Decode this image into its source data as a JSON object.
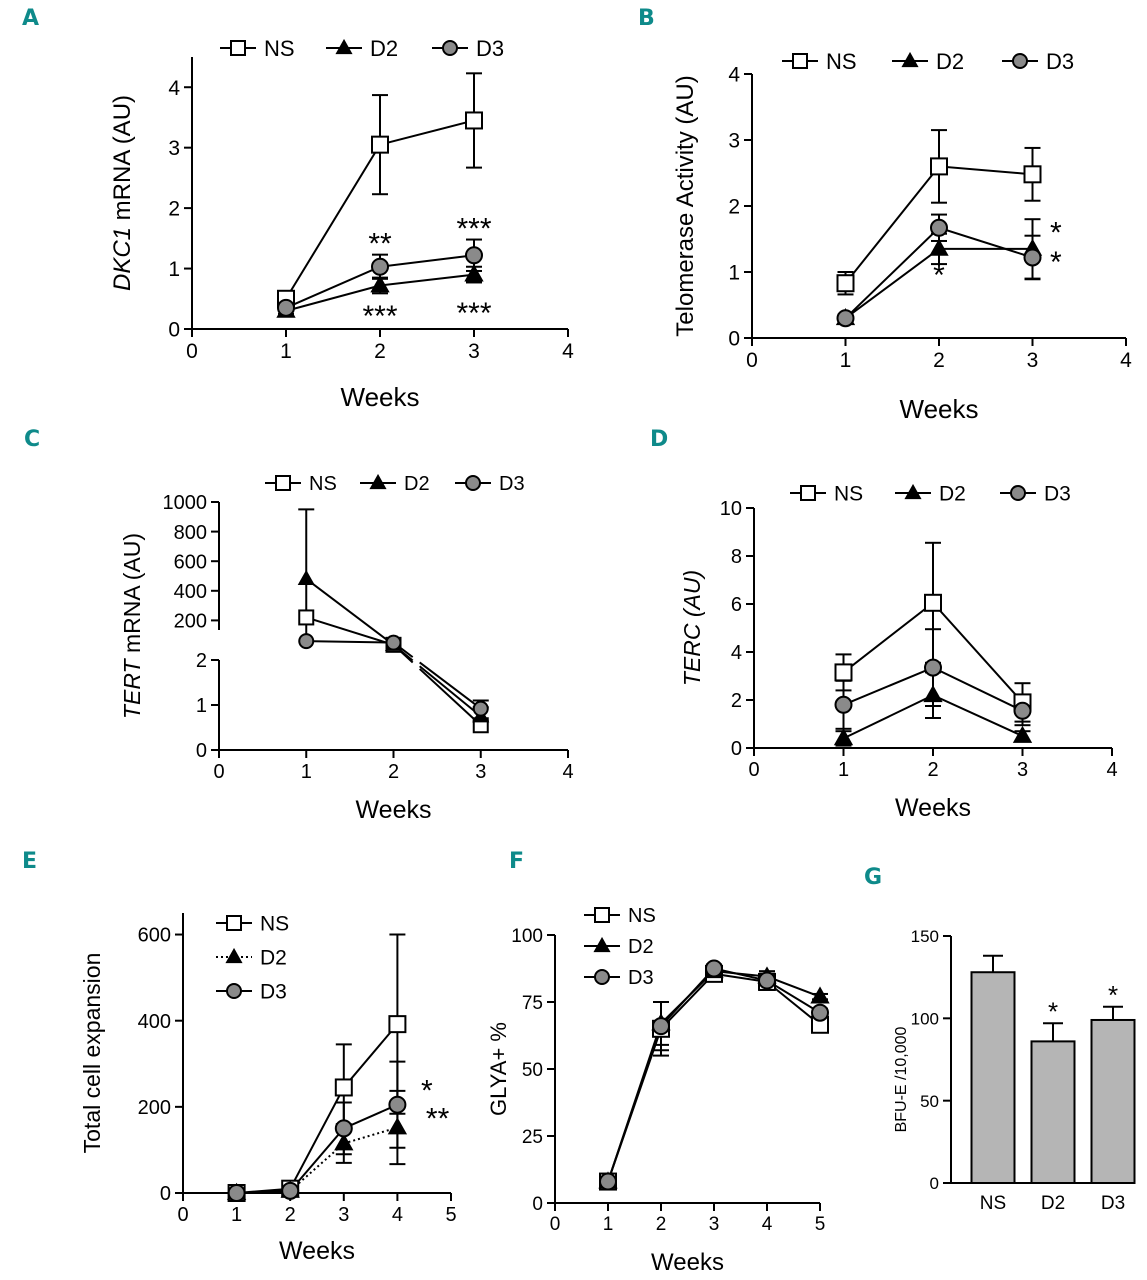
{
  "chart_data": [
    {
      "id": "A",
      "panel_label": "A",
      "type": "line",
      "ylabel_italic": "DKC1",
      "ylabel_rest": " mRNA (AU)",
      "xlabel": "Weeks",
      "xlim": [
        0,
        4
      ],
      "ylim": [
        0,
        4.5
      ],
      "xticks": [
        0,
        1,
        2,
        3,
        4
      ],
      "yticks": [
        0,
        1,
        2,
        3,
        4
      ],
      "x": [
        1,
        2,
        3
      ],
      "series": [
        {
          "name": "NS",
          "values": [
            0.5,
            3.05,
            3.45
          ],
          "err": [
            0.05,
            0.82,
            0.78
          ]
        },
        {
          "name": "D2",
          "values": [
            0.3,
            0.72,
            0.9
          ],
          "err": [
            0.05,
            0.13,
            0.13
          ]
        },
        {
          "name": "D3",
          "values": [
            0.35,
            1.03,
            1.22
          ],
          "err": [
            0.05,
            0.2,
            0.26
          ]
        }
      ],
      "legend": [
        "NS",
        "D2",
        "D3"
      ],
      "annotations": [
        {
          "text": "**",
          "x": 2,
          "y": 1.25
        },
        {
          "text": "***",
          "x": 2,
          "y": 0.05
        },
        {
          "text": "***",
          "x": 3,
          "y": 1.5
        },
        {
          "text": "***",
          "x": 3,
          "y": 0.1
        }
      ]
    },
    {
      "id": "B",
      "panel_label": "B",
      "type": "line",
      "ylabel": "Telomerase Activity (AU)",
      "xlabel": "Weeks",
      "xlim": [
        0,
        4
      ],
      "ylim": [
        0,
        4
      ],
      "xticks": [
        0,
        1,
        2,
        3,
        4
      ],
      "yticks": [
        0,
        1,
        2,
        3,
        4
      ],
      "x": [
        1,
        2,
        3
      ],
      "series": [
        {
          "name": "NS",
          "values": [
            0.83,
            2.6,
            2.48
          ],
          "err": [
            0.17,
            0.55,
            0.4
          ]
        },
        {
          "name": "D2",
          "values": [
            0.3,
            1.35,
            1.35
          ],
          "err": [
            0.05,
            0.23,
            0.45
          ]
        },
        {
          "name": "D3",
          "values": [
            0.3,
            1.67,
            1.22
          ],
          "err": [
            0.05,
            0.2,
            0.33
          ]
        }
      ],
      "legend": [
        "NS",
        "D2",
        "D3"
      ],
      "annotations": [
        {
          "text": "*",
          "x": 2,
          "y": 0.8
        },
        {
          "text": "*",
          "x": 3.25,
          "y": 1.45
        },
        {
          "text": "*",
          "x": 3.25,
          "y": 1.0
        }
      ]
    },
    {
      "id": "C",
      "panel_label": "C",
      "type": "line",
      "broken_axis": true,
      "ylabel_italic": "TERT",
      "ylabel_rest": " mRNA  (AU)",
      "xlabel": "Weeks",
      "xlim": [
        0,
        4
      ],
      "ylim_low": [
        0,
        2
      ],
      "ylim_high": [
        0,
        1000
      ],
      "xticks": [
        0,
        1,
        2,
        3,
        4
      ],
      "yticks_low": [
        0,
        1,
        2
      ],
      "yticks_high": [
        200,
        400,
        600,
        800,
        1000
      ],
      "x": [
        1,
        2,
        3
      ],
      "series": [
        {
          "name": "NS",
          "values": [
            220,
            35,
            0.55
          ],
          "err": [
            0,
            0,
            0.1
          ]
        },
        {
          "name": "D2",
          "values": [
            480,
            35,
            0.75
          ],
          "err": [
            470,
            0,
            0.2
          ]
        },
        {
          "name": "D3",
          "values": [
            60,
            50,
            0.92
          ],
          "err": [
            0,
            0,
            0.18
          ]
        }
      ],
      "legend": [
        "NS",
        "D2",
        "D3"
      ]
    },
    {
      "id": "D",
      "panel_label": "D",
      "type": "line",
      "ylabel": "TERC (AU)",
      "xlabel": "Weeks",
      "xlim": [
        0,
        4
      ],
      "ylim": [
        0,
        10
      ],
      "xticks": [
        0,
        1,
        2,
        3,
        4
      ],
      "yticks": [
        0,
        2,
        4,
        6,
        8,
        10
      ],
      "x": [
        1,
        2,
        3
      ],
      "series": [
        {
          "name": "NS",
          "values": [
            3.15,
            6.05,
            1.9
          ],
          "err": [
            0.75,
            2.5,
            0.8
          ]
        },
        {
          "name": "D2",
          "values": [
            0.4,
            2.2,
            0.5
          ],
          "err": [
            0.3,
            0.95,
            0.2
          ]
        },
        {
          "name": "D3",
          "values": [
            1.8,
            3.35,
            1.55
          ],
          "err": [
            1.0,
            1.6,
            0.6
          ]
        }
      ],
      "legend": [
        "NS",
        "D2",
        "D3"
      ]
    },
    {
      "id": "E",
      "panel_label": "E",
      "type": "line",
      "ylabel": "Total cell expansion",
      "xlabel": "Weeks",
      "xlim": [
        0,
        5
      ],
      "ylim": [
        0,
        650
      ],
      "xticks": [
        0,
        1,
        2,
        3,
        4,
        5
      ],
      "yticks": [
        0,
        200,
        400,
        600
      ],
      "x": [
        1,
        2,
        3,
        4
      ],
      "series": [
        {
          "name": "NS",
          "values": [
            0,
            10,
            245,
            392
          ],
          "err": [
            0,
            0,
            100,
            208
          ]
        },
        {
          "name": "D2",
          "values": [
            0,
            5,
            115,
            152
          ],
          "err": [
            0,
            0,
            45,
            85
          ],
          "dotted": true
        },
        {
          "name": "D3",
          "values": [
            0,
            5,
            150,
            205
          ],
          "err": [
            0,
            0,
            60,
            100
          ]
        }
      ],
      "legend": [
        "NS",
        "D2",
        "D3"
      ],
      "annotations": [
        {
          "text": "*",
          "x": 4.55,
          "y": 215
        },
        {
          "text": "**",
          "x": 4.75,
          "y": 150
        }
      ]
    },
    {
      "id": "F",
      "panel_label": "F",
      "type": "line",
      "ylabel": "GLYA+ %",
      "xlabel": "Weeks",
      "xlim": [
        0,
        5
      ],
      "ylim": [
        0,
        100
      ],
      "xticks": [
        0,
        1,
        2,
        3,
        4,
        5
      ],
      "yticks": [
        0,
        25,
        50,
        75,
        100
      ],
      "x": [
        1,
        2,
        3,
        4,
        5
      ],
      "series": [
        {
          "name": "NS",
          "values": [
            8,
            65,
            85.5,
            82.5,
            66.5
          ],
          "err": [
            1.5,
            10,
            1.5,
            3,
            2
          ]
        },
        {
          "name": "D2",
          "values": [
            8,
            67,
            86.5,
            84.5,
            77
          ],
          "err": [
            1.5,
            8,
            1.5,
            2,
            1
          ]
        },
        {
          "name": "D3",
          "values": [
            8,
            66,
            87.5,
            83,
            71
          ],
          "err": [
            1.5,
            9,
            1.5,
            2.5,
            1.5
          ]
        }
      ],
      "legend": [
        "NS",
        "D2",
        "D3"
      ]
    },
    {
      "id": "G",
      "panel_label": "G",
      "type": "bar",
      "ylabel": "BFU-E /10,000",
      "categories": [
        "NS",
        "D2",
        "D3"
      ],
      "values": [
        128,
        86,
        99
      ],
      "err": [
        10,
        11,
        8
      ],
      "ylim": [
        0,
        150
      ],
      "yticks": [
        0,
        50,
        100,
        150
      ],
      "annotations": [
        "",
        "*",
        "*"
      ]
    }
  ]
}
